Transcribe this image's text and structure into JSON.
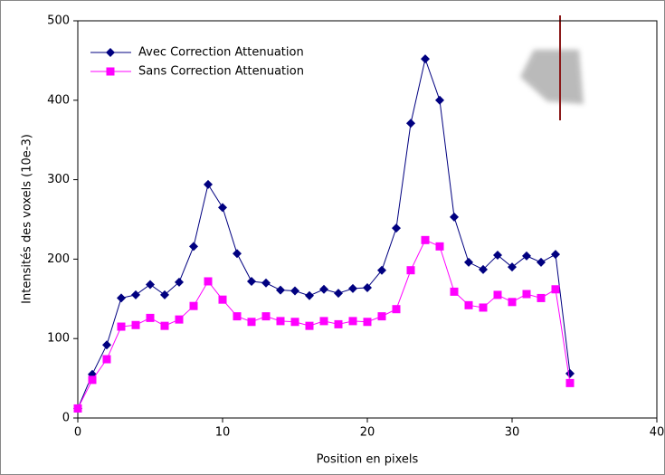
{
  "chart_data": {
    "type": "line",
    "xlabel": "Position en pixels",
    "ylabel": "Intensités des voxels (10e-3)",
    "x": [
      0,
      1,
      2,
      3,
      4,
      5,
      6,
      7,
      8,
      9,
      10,
      11,
      12,
      13,
      14,
      15,
      16,
      17,
      18,
      19,
      20,
      21,
      22,
      23,
      24,
      25,
      26,
      27,
      28,
      29,
      30,
      31,
      32,
      33,
      34
    ],
    "series": [
      {
        "name": "Avec Correction Attenuation",
        "color": "#000080",
        "marker": "diamond",
        "values": [
          12,
          55,
          92,
          151,
          155,
          168,
          155,
          171,
          216,
          294,
          265,
          207,
          172,
          170,
          161,
          160,
          154,
          162,
          157,
          163,
          164,
          186,
          239,
          371,
          452,
          400,
          253,
          196,
          187,
          205,
          190,
          204,
          196,
          206,
          56
        ]
      },
      {
        "name": "Sans Correction Attenuation",
        "color": "#ff00ff",
        "marker": "square",
        "values": [
          12,
          48,
          74,
          115,
          117,
          126,
          116,
          124,
          141,
          172,
          149,
          128,
          121,
          128,
          122,
          121,
          116,
          122,
          118,
          122,
          121,
          128,
          137,
          186,
          224,
          216,
          159,
          142,
          139,
          155,
          146,
          156,
          151,
          162,
          44
        ]
      }
    ],
    "xlim": [
      0,
      40
    ],
    "xticks": [
      0,
      10,
      20,
      30,
      40
    ],
    "ylim": [
      0,
      500
    ],
    "yticks": [
      0,
      100,
      200,
      300,
      400,
      500
    ],
    "legend": "upper-left"
  }
}
